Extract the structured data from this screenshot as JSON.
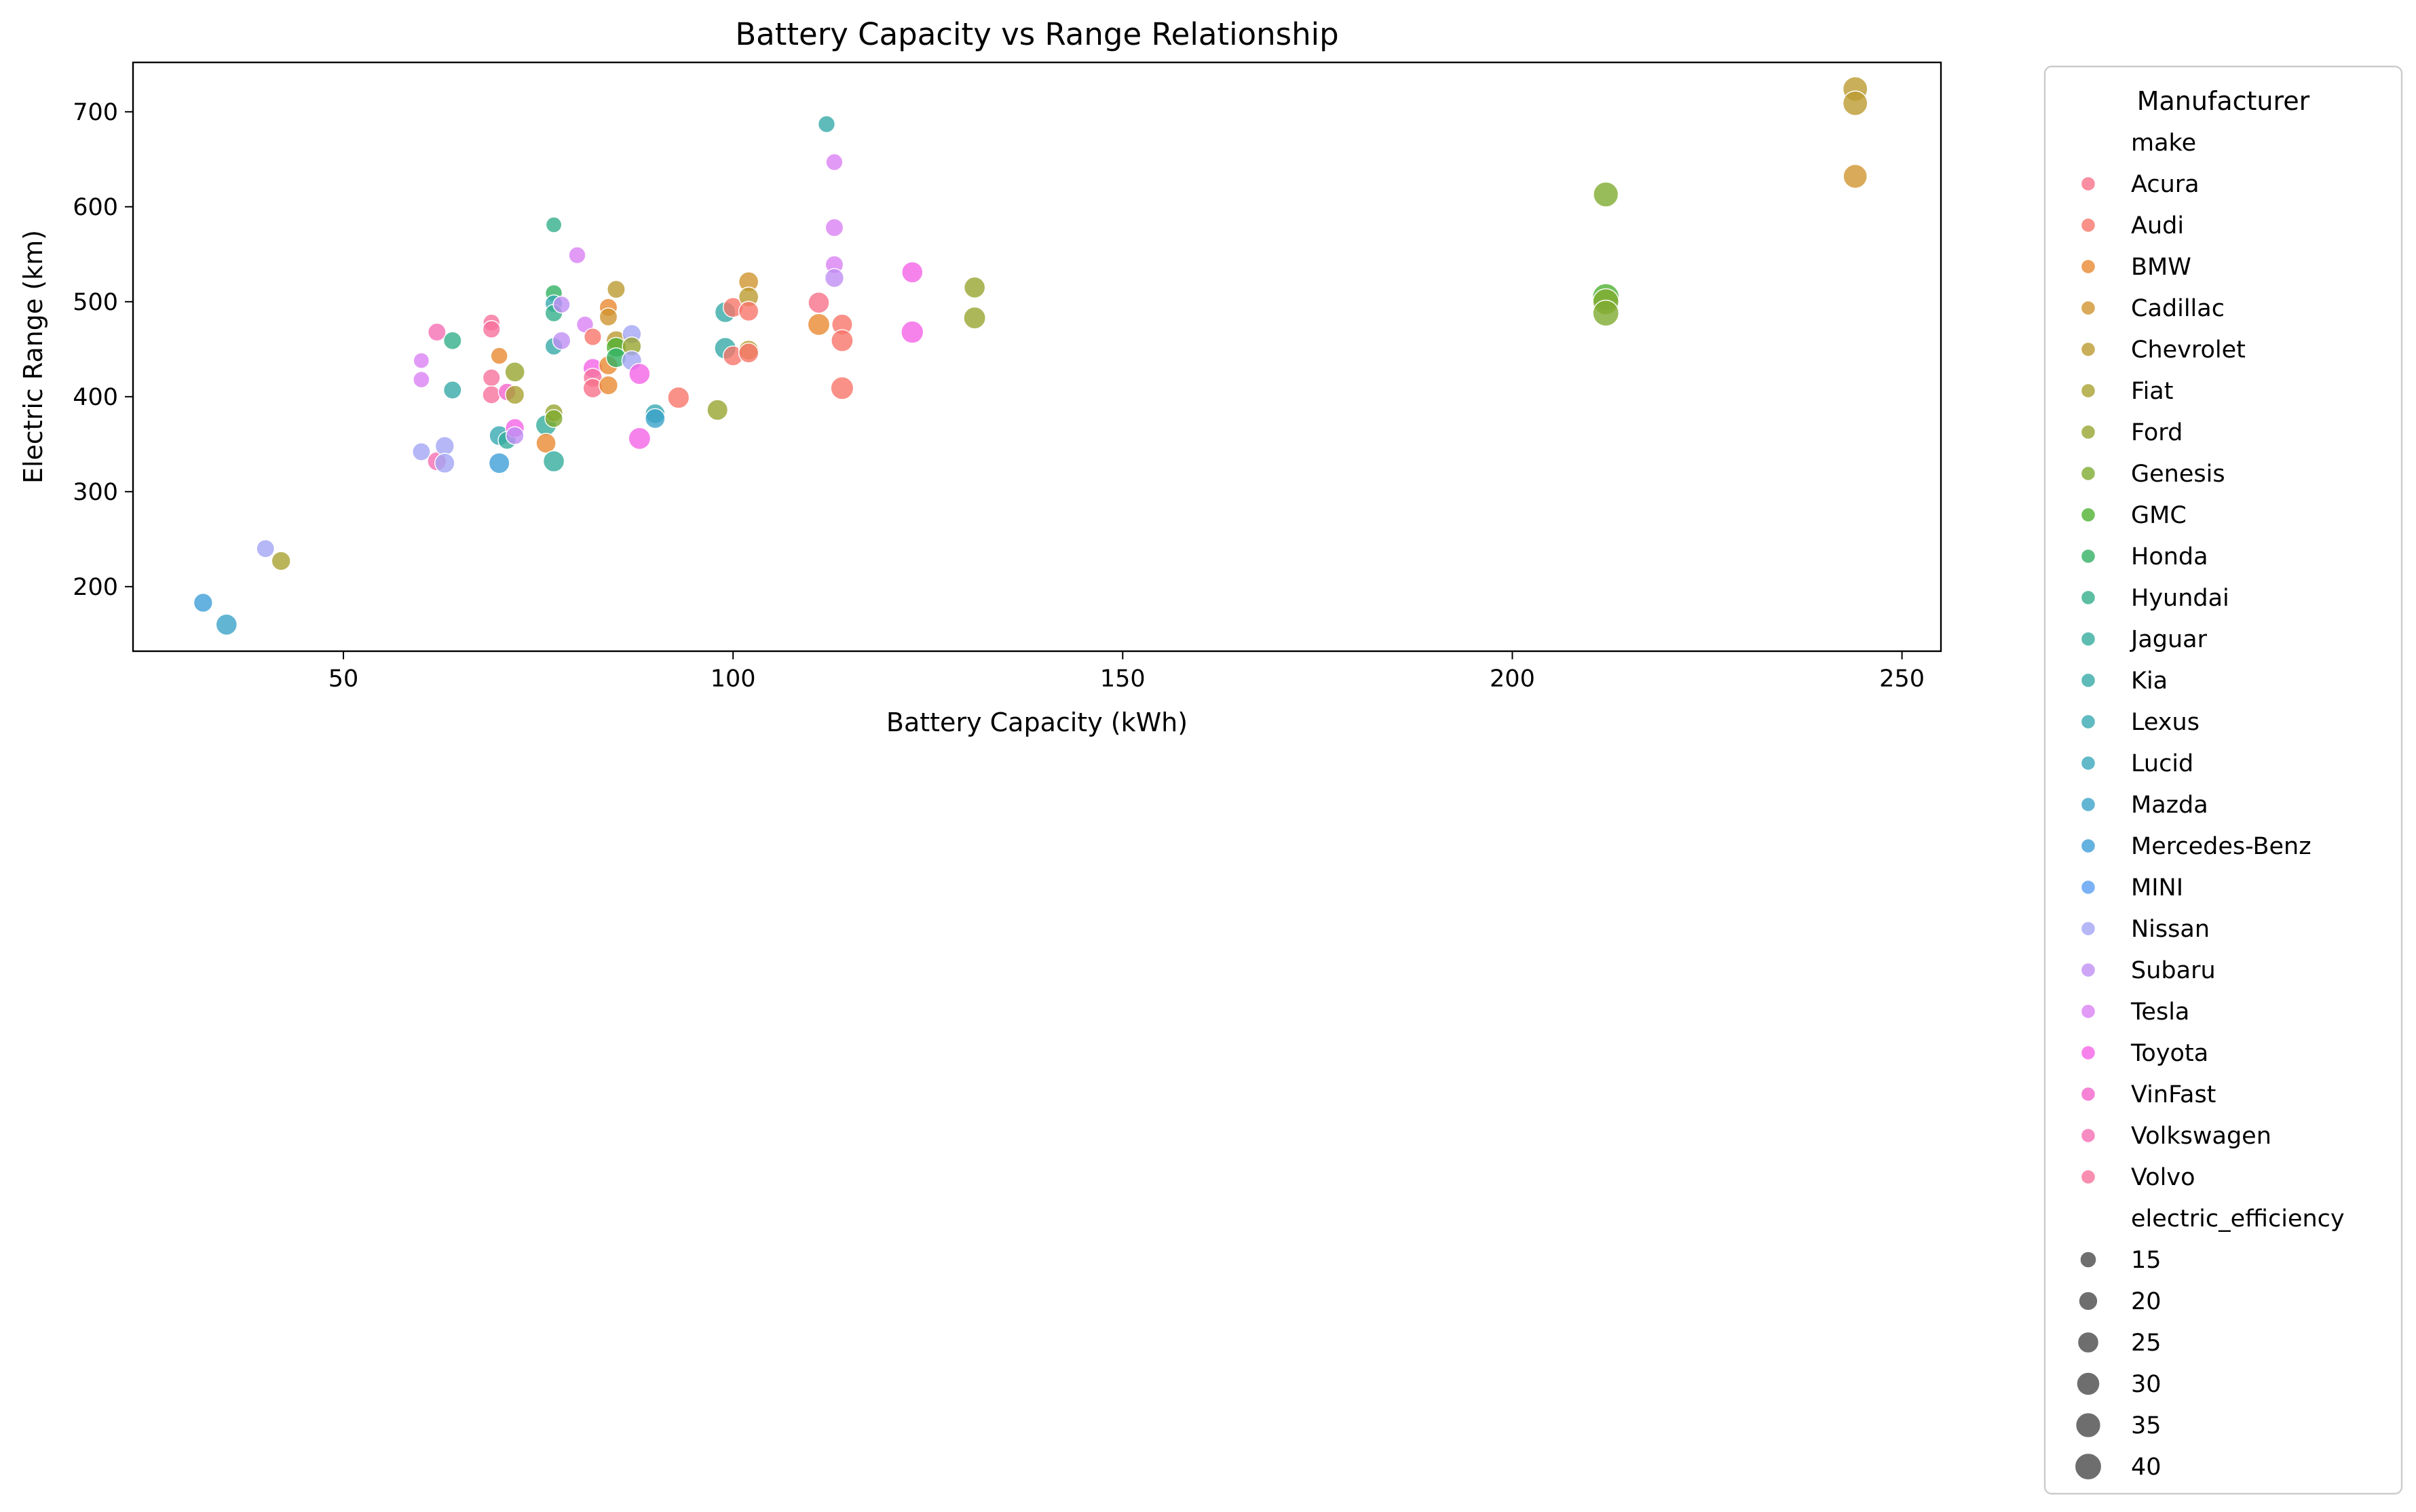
{
  "chart_data": {
    "type": "scatter",
    "title": "Battery Capacity vs Range Relationship",
    "xlabel": "Battery Capacity (kWh)",
    "ylabel": "Electric Range (km)",
    "xlim": [
      23,
      255
    ],
    "ylim": [
      132,
      752
    ],
    "xticks": [
      50,
      100,
      150,
      200,
      250
    ],
    "yticks": [
      200,
      300,
      400,
      500,
      600,
      700
    ],
    "grid": false,
    "legend": {
      "placement": "outside-right",
      "title": "Manufacturer",
      "hue_header": "make",
      "size_header": "electric_efficiency",
      "sizes": [
        15,
        20,
        25,
        30,
        35,
        40
      ]
    },
    "makes": [
      {
        "name": "Acura",
        "color": "#f77189"
      },
      {
        "name": "Audi",
        "color": "#f7756a"
      },
      {
        "name": "BMW",
        "color": "#e98932"
      },
      {
        "name": "Cadillac",
        "color": "#d0952f"
      },
      {
        "name": "Chevrolet",
        "color": "#bb9b31"
      },
      {
        "name": "Fiat",
        "color": "#a9a131"
      },
      {
        "name": "Ford",
        "color": "#97a531"
      },
      {
        "name": "Genesis",
        "color": "#7fab31"
      },
      {
        "name": "GMC",
        "color": "#4fb232"
      },
      {
        "name": "Honda",
        "color": "#32b164"
      },
      {
        "name": "Hyundai",
        "color": "#34af8b"
      },
      {
        "name": "Jaguar",
        "color": "#35ac9c"
      },
      {
        "name": "Kia",
        "color": "#36aaa7"
      },
      {
        "name": "Lexus",
        "color": "#38a9b1"
      },
      {
        "name": "Lucid",
        "color": "#39a7bb"
      },
      {
        "name": "Mazda",
        "color": "#3ba3c8"
      },
      {
        "name": "Mercedes-Benz",
        "color": "#3e9fd8"
      },
      {
        "name": "MINI",
        "color": "#5a9ff2"
      },
      {
        "name": "Nissan",
        "color": "#a2a5f4"
      },
      {
        "name": "Subaru",
        "color": "#c08ff4"
      },
      {
        "name": "Tesla",
        "color": "#d982f4"
      },
      {
        "name": "Toyota",
        "color": "#f464e6"
      },
      {
        "name": "VinFast",
        "color": "#f464cc"
      },
      {
        "name": "Volkswagen",
        "color": "#f56fb4"
      },
      {
        "name": "Volvo",
        "color": "#f6729c"
      }
    ],
    "points": [
      {
        "x": 32,
        "y": 183,
        "size": 20,
        "color": "#3e9fd8"
      },
      {
        "x": 35,
        "y": 160,
        "size": 25,
        "color": "#3ba3c8"
      },
      {
        "x": 40,
        "y": 240,
        "size": 18,
        "color": "#a2a5f4"
      },
      {
        "x": 42,
        "y": 227,
        "size": 20,
        "color": "#a9a131"
      },
      {
        "x": 60,
        "y": 342,
        "size": 18,
        "color": "#a2a5f4"
      },
      {
        "x": 60,
        "y": 418,
        "size": 15,
        "color": "#d982f4"
      },
      {
        "x": 60,
        "y": 438,
        "size": 14,
        "color": "#d982f4"
      },
      {
        "x": 62,
        "y": 332,
        "size": 20,
        "color": "#f56fb4"
      },
      {
        "x": 62,
        "y": 468,
        "size": 18,
        "color": "#f56fb4"
      },
      {
        "x": 63,
        "y": 348,
        "size": 20,
        "color": "#a2a5f4"
      },
      {
        "x": 63,
        "y": 330,
        "size": 22,
        "color": "#a2a5f4"
      },
      {
        "x": 64,
        "y": 459,
        "size": 18,
        "color": "#34af8b"
      },
      {
        "x": 64,
        "y": 407,
        "size": 18,
        "color": "#36aaa7"
      },
      {
        "x": 69,
        "y": 478,
        "size": 16,
        "color": "#f6729c"
      },
      {
        "x": 69,
        "y": 471,
        "size": 17,
        "color": "#f6729c"
      },
      {
        "x": 69,
        "y": 420,
        "size": 17,
        "color": "#f6729c"
      },
      {
        "x": 69,
        "y": 402,
        "size": 18,
        "color": "#f6729c"
      },
      {
        "x": 70,
        "y": 443,
        "size": 16,
        "color": "#e98932"
      },
      {
        "x": 70,
        "y": 359,
        "size": 22,
        "color": "#38a9b1"
      },
      {
        "x": 70,
        "y": 330,
        "size": 24,
        "color": "#3e9fd8"
      },
      {
        "x": 71,
        "y": 405,
        "size": 17,
        "color": "#f464cc"
      },
      {
        "x": 71,
        "y": 354,
        "size": 18,
        "color": "#35ac9c"
      },
      {
        "x": 72,
        "y": 426,
        "size": 22,
        "color": "#97a531"
      },
      {
        "x": 72,
        "y": 402,
        "size": 20,
        "color": "#a9a131"
      },
      {
        "x": 72,
        "y": 367,
        "size": 20,
        "color": "#f464e6"
      },
      {
        "x": 72,
        "y": 359,
        "size": 18,
        "color": "#c08ff4"
      },
      {
        "x": 76,
        "y": 370,
        "size": 24,
        "color": "#35ac9c"
      },
      {
        "x": 76,
        "y": 351,
        "size": 22,
        "color": "#e98932"
      },
      {
        "x": 77,
        "y": 581,
        "size": 14,
        "color": "#34af8b"
      },
      {
        "x": 77,
        "y": 509,
        "size": 16,
        "color": "#32b164"
      },
      {
        "x": 77,
        "y": 498,
        "size": 17,
        "color": "#38a9b1"
      },
      {
        "x": 77,
        "y": 488,
        "size": 17,
        "color": "#34af8b"
      },
      {
        "x": 77,
        "y": 453,
        "size": 17,
        "color": "#36aaa7"
      },
      {
        "x": 77,
        "y": 383,
        "size": 18,
        "color": "#97a531"
      },
      {
        "x": 77,
        "y": 377,
        "size": 18,
        "color": "#7fab31"
      },
      {
        "x": 77,
        "y": 332,
        "size": 25,
        "color": "#35ac9c"
      },
      {
        "x": 78,
        "y": 497,
        "size": 16,
        "color": "#c08ff4"
      },
      {
        "x": 78,
        "y": 459,
        "size": 18,
        "color": "#c08ff4"
      },
      {
        "x": 80,
        "y": 549,
        "size": 16,
        "color": "#d982f4"
      },
      {
        "x": 81,
        "y": 476,
        "size": 16,
        "color": "#d982f4"
      },
      {
        "x": 82,
        "y": 463,
        "size": 17,
        "color": "#f7756a"
      },
      {
        "x": 82,
        "y": 430,
        "size": 21,
        "color": "#f464e6"
      },
      {
        "x": 82,
        "y": 420,
        "size": 20,
        "color": "#f6729c"
      },
      {
        "x": 82,
        "y": 409,
        "size": 21,
        "color": "#f77189"
      },
      {
        "x": 84,
        "y": 494,
        "size": 18,
        "color": "#e98932"
      },
      {
        "x": 84,
        "y": 484,
        "size": 18,
        "color": "#d0952f"
      },
      {
        "x": 84,
        "y": 433,
        "size": 20,
        "color": "#e98932"
      },
      {
        "x": 84,
        "y": 412,
        "size": 20,
        "color": "#e98932"
      },
      {
        "x": 85,
        "y": 513,
        "size": 18,
        "color": "#bb9b31"
      },
      {
        "x": 85,
        "y": 459,
        "size": 22,
        "color": "#bb9b31"
      },
      {
        "x": 85,
        "y": 452,
        "size": 22,
        "color": "#4fb232"
      },
      {
        "x": 85,
        "y": 441,
        "size": 22,
        "color": "#32b164"
      },
      {
        "x": 87,
        "y": 466,
        "size": 20,
        "color": "#a2a5f4"
      },
      {
        "x": 87,
        "y": 453,
        "size": 20,
        "color": "#97a531"
      },
      {
        "x": 87,
        "y": 438,
        "size": 22,
        "color": "#a2a5f4"
      },
      {
        "x": 88,
        "y": 424,
        "size": 25,
        "color": "#f464e6"
      },
      {
        "x": 88,
        "y": 356,
        "size": 27,
        "color": "#f464e6"
      },
      {
        "x": 90,
        "y": 382,
        "size": 22,
        "color": "#38a9b1"
      },
      {
        "x": 90,
        "y": 377,
        "size": 22,
        "color": "#3ba3c8"
      },
      {
        "x": 93,
        "y": 399,
        "size": 26,
        "color": "#f7756a"
      },
      {
        "x": 98,
        "y": 386,
        "size": 24,
        "color": "#97a531"
      },
      {
        "x": 99,
        "y": 489,
        "size": 24,
        "color": "#36aaa7"
      },
      {
        "x": 99,
        "y": 451,
        "size": 26,
        "color": "#36aaa7"
      },
      {
        "x": 100,
        "y": 494,
        "size": 22,
        "color": "#f7756a"
      },
      {
        "x": 100,
        "y": 443,
        "size": 22,
        "color": "#f7756a"
      },
      {
        "x": 102,
        "y": 521,
        "size": 22,
        "color": "#d0952f"
      },
      {
        "x": 102,
        "y": 505,
        "size": 22,
        "color": "#bb9b31"
      },
      {
        "x": 102,
        "y": 490,
        "size": 22,
        "color": "#f7756a"
      },
      {
        "x": 102,
        "y": 449,
        "size": 22,
        "color": "#bb9b31"
      },
      {
        "x": 102,
        "y": 446,
        "size": 22,
        "color": "#f7756a"
      },
      {
        "x": 111,
        "y": 499,
        "size": 25,
        "color": "#f77189"
      },
      {
        "x": 111,
        "y": 476,
        "size": 27,
        "color": "#e98932"
      },
      {
        "x": 112,
        "y": 687,
        "size": 16,
        "color": "#36aaa7"
      },
      {
        "x": 113,
        "y": 647,
        "size": 16,
        "color": "#d982f4"
      },
      {
        "x": 113,
        "y": 578,
        "size": 18,
        "color": "#d982f4"
      },
      {
        "x": 113,
        "y": 539,
        "size": 18,
        "color": "#d982f4"
      },
      {
        "x": 113,
        "y": 525,
        "size": 20,
        "color": "#c08ff4"
      },
      {
        "x": 114,
        "y": 476,
        "size": 24,
        "color": "#f7756a"
      },
      {
        "x": 114,
        "y": 459,
        "size": 27,
        "color": "#f7756a"
      },
      {
        "x": 114,
        "y": 409,
        "size": 29,
        "color": "#f7756a"
      },
      {
        "x": 123,
        "y": 531,
        "size": 25,
        "color": "#f464e6"
      },
      {
        "x": 123,
        "y": 468,
        "size": 28,
        "color": "#f464e6"
      },
      {
        "x": 131,
        "y": 515,
        "size": 25,
        "color": "#97a531"
      },
      {
        "x": 131,
        "y": 483,
        "size": 27,
        "color": "#97a531"
      },
      {
        "x": 212,
        "y": 613,
        "size": 35,
        "color": "#7fab31"
      },
      {
        "x": 212,
        "y": 505,
        "size": 40,
        "color": "#4fb232"
      },
      {
        "x": 212,
        "y": 500,
        "size": 38,
        "color": "#7fab31"
      },
      {
        "x": 212,
        "y": 488,
        "size": 38,
        "color": "#7fab31"
      },
      {
        "x": 244,
        "y": 724,
        "size": 34,
        "color": "#bb9b31"
      },
      {
        "x": 244,
        "y": 709,
        "size": 34,
        "color": "#bb9b31"
      },
      {
        "x": 244,
        "y": 632,
        "size": 32,
        "color": "#d0952f"
      }
    ]
  }
}
